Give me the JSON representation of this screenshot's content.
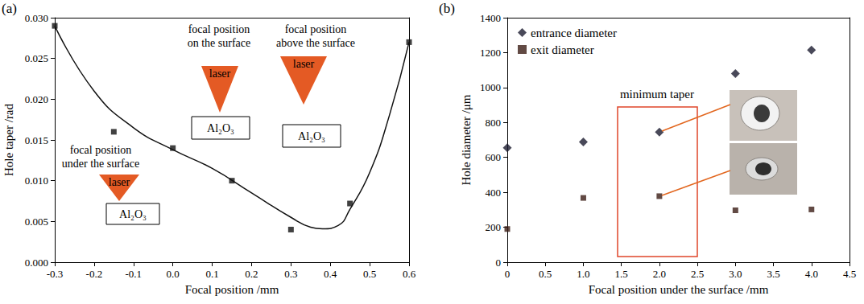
{
  "chart_data": [
    {
      "type": "scatter",
      "label": "(a)",
      "xlabel": "Focal position /mm",
      "ylabel": "Hole taper /rad",
      "xlim": [
        -0.3,
        0.6
      ],
      "xticks": [
        -0.3,
        -0.2,
        -0.1,
        {
          "value": 0,
          "label": "0.0"
        },
        0.1,
        0.2,
        0.3,
        0.4,
        0.5,
        0.6
      ],
      "ylim": [
        0,
        0.03
      ],
      "yticks": [
        {
          "value": 0,
          "label": "0.000"
        },
        0.005,
        {
          "value": 0.01,
          "label": "0.010"
        },
        0.015,
        {
          "value": 0.02,
          "label": "0.020"
        },
        0.025,
        {
          "value": 0.03,
          "label": "0.030"
        }
      ],
      "grid": false,
      "series": [
        {
          "type": "scatter",
          "marker": "square",
          "color": "#111111",
          "x": [
            -0.3,
            -0.15,
            0,
            0.15,
            0.3,
            0.45,
            0.6
          ],
          "values": [
            0.029,
            0.016,
            0.014,
            0.01,
            0.004,
            0.0072,
            0.027
          ]
        },
        {
          "type": "line",
          "line_style": "smooth",
          "color": "#111111",
          "x": [
            -0.3,
            -0.2,
            -0.1,
            0,
            0.1,
            0.2,
            0.3,
            0.35,
            0.38,
            0.42,
            0.45,
            0.5,
            0.55,
            0.6
          ],
          "values": [
            0.029,
            0.021,
            0.0165,
            0.0138,
            0.0115,
            0.0085,
            0.0055,
            0.0043,
            0.0041,
            0.0045,
            0.0065,
            0.011,
            0.018,
            0.027
          ]
        }
      ],
      "annotations": [
        {
          "text": "focal position under the surface",
          "laser": "laser",
          "material": "Al₂O₃",
          "color": "#e45a24"
        },
        {
          "text": "focal position on the surface",
          "laser": "laser",
          "material": "Al₂O₃",
          "color": "#e45a24"
        },
        {
          "text": "focal position above the surface",
          "laser": "laser",
          "material": "Al₂O₃",
          "color": "#e45a24"
        }
      ]
    },
    {
      "type": "scatter",
      "label": "(b)",
      "xlabel": "Focal position under the surface /mm",
      "ylabel": "Hole diameter /μm",
      "xlim": [
        0,
        4.5
      ],
      "xticks": [
        0,
        0.5,
        {
          "value": 1,
          "label": "1.0"
        },
        1.5,
        {
          "value": 2,
          "label": "2.0"
        },
        2.5,
        {
          "value": 3,
          "label": "3.0"
        },
        3.5,
        {
          "value": 4,
          "label": "4.0"
        },
        4.5
      ],
      "ylim": [
        0,
        1400
      ],
      "yticks": [
        0,
        200,
        400,
        600,
        800,
        1000,
        1200,
        1400
      ],
      "grid": false,
      "legend": "upper left",
      "series": [
        {
          "name": "entrance diameter",
          "type": "scatter",
          "marker": "diamond",
          "color": "#1b1b2f",
          "x": [
            0,
            1,
            2,
            3,
            4
          ],
          "values": [
            655,
            688,
            745,
            1080,
            1215
          ]
        },
        {
          "name": "exit diameter",
          "type": "scatter",
          "marker": "square",
          "color": "#3b1d15",
          "x": [
            0,
            1,
            2,
            3,
            4
          ],
          "values": [
            190,
            368,
            378,
            297,
            302
          ]
        }
      ],
      "annotations": [
        {
          "text": "minimum taper",
          "color": "#e0452a"
        }
      ]
    }
  ]
}
